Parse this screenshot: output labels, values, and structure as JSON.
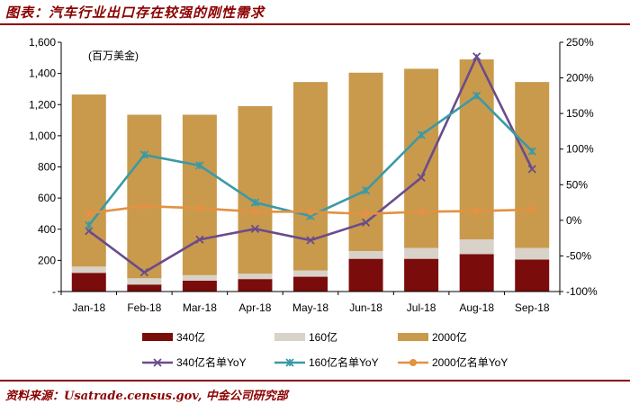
{
  "header": {
    "title": "图表：汽车行业出口存在较强的刚性需求"
  },
  "footer": {
    "source": "资料来源：Usatrade.census.gov, 中金公司研究部"
  },
  "colors": {
    "bar_340": "#7b0c0c",
    "bar_160": "#d8d2c9",
    "bar_2000": "#c99a4c",
    "line_340": "#6a4c8c",
    "line_160": "#3a9aa6",
    "line_2000": "#e39142"
  },
  "chart_data": {
    "type": "bar",
    "unit_label": "(百万美金)",
    "categories": [
      "Jan-18",
      "Feb-18",
      "Mar-18",
      "Apr-18",
      "May-18",
      "Jun-18",
      "Jul-18",
      "Aug-18",
      "Sep-18"
    ],
    "y_left": {
      "lim": [
        0,
        1600
      ],
      "ticks": [
        0,
        200,
        400,
        600,
        800,
        1000,
        1200,
        1400,
        1600
      ],
      "tick_labels": [
        "-",
        "200",
        "400",
        "600",
        "800",
        "1,000",
        "1,200",
        "1,400",
        "1,600"
      ]
    },
    "y_right": {
      "lim": [
        -100,
        250
      ],
      "ticks": [
        -100,
        -50,
        0,
        50,
        100,
        150,
        200,
        250
      ],
      "tick_labels": [
        "-100%",
        "-50%",
        "0%",
        "50%",
        "100%",
        "150%",
        "200%",
        "250%"
      ]
    },
    "bar_series": [
      {
        "name": "340亿",
        "values": [
          120,
          45,
          70,
          80,
          95,
          210,
          210,
          240,
          205
        ]
      },
      {
        "name": "160亿",
        "values": [
          40,
          40,
          35,
          35,
          40,
          50,
          70,
          95,
          75
        ]
      },
      {
        "name": "2000亿",
        "values": [
          1105,
          1050,
          1030,
          1075,
          1210,
          1145,
          1150,
          1155,
          1065
        ]
      }
    ],
    "line_series": [
      {
        "name": "340亿名单YoY",
        "values": [
          -15,
          -73,
          -27,
          -12,
          -28,
          -3,
          60,
          230,
          72
        ]
      },
      {
        "name": "160亿名单YoY",
        "values": [
          -7,
          92,
          77,
          25,
          6,
          42,
          120,
          175,
          97
        ]
      },
      {
        "name": "2000亿名单YoY",
        "values": [
          10,
          20,
          17,
          12,
          12,
          9,
          12,
          13,
          15
        ]
      }
    ],
    "legend": {
      "position": "bottom"
    }
  }
}
